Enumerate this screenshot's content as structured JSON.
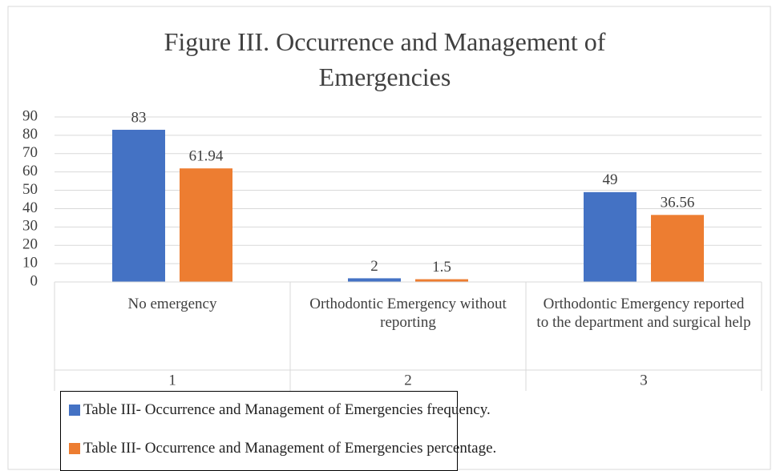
{
  "chart_data": {
    "type": "bar",
    "title": "Figure III. Occurrence and Management of Emergencies",
    "categories": [
      "No emergency",
      "Orthodontic Emergency without reporting",
      "Orthodontic Emergency reported to the department and surgical help"
    ],
    "category_groups": [
      "1",
      "2",
      "3"
    ],
    "series": [
      {
        "name": "Table III- Occurrence and Management of Emergencies frequency.",
        "color": "#4472c4",
        "values": [
          83,
          2,
          49
        ]
      },
      {
        "name": "Table III- Occurrence and Management of Emergencies percentage.",
        "color": "#ed7d31",
        "values": [
          61.94,
          1.5,
          36.56
        ]
      }
    ],
    "ylim": [
      0,
      90
    ],
    "yticks": [
      0,
      10,
      20,
      30,
      40,
      50,
      60,
      70,
      80,
      90
    ],
    "grid": true,
    "legend": "bottom"
  }
}
